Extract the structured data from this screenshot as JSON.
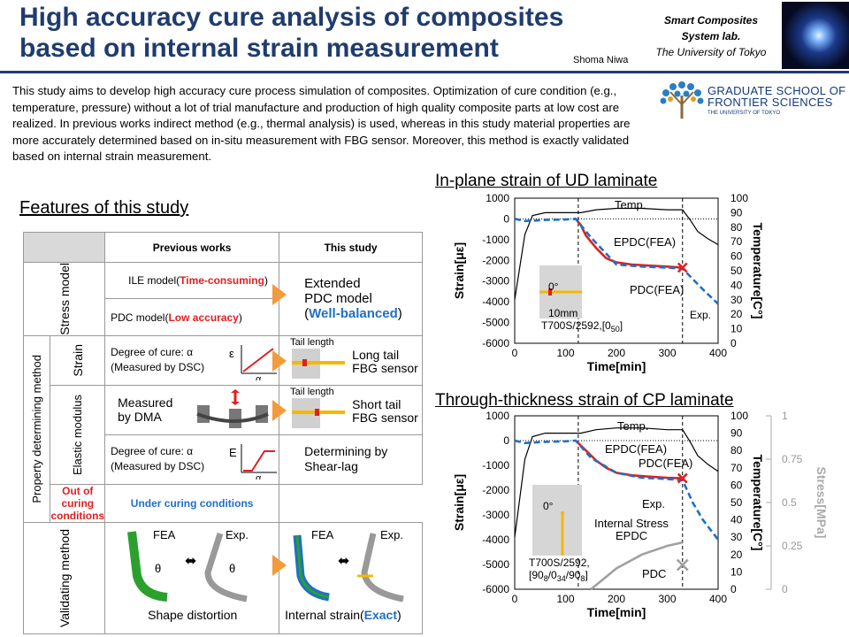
{
  "header": {
    "title": "High accuracy cure analysis of composites based on internal strain measurement",
    "author": "Shoma Niwa",
    "lab_line1": "Smart Composites",
    "lab_line2": "System lab.",
    "lab_line3": "The University of Tokyo",
    "school_line1": "GRADUATE SCHOOL OF",
    "school_line2": "FRONTIER SCIENCES",
    "school_line3": "THE UNIVERSITY OF TOKYO"
  },
  "intro": "This study aims to develop high accuracy cure process simulation of composites. Optimization of cure condition (e.g., temperature, pressure) without a lot of trial manufacture and production of high quality composite parts at low cost are realized. In previous works indirect method (e.g., thermal analysis) is used, whereas in this study material properties are more accurately determined based on in-situ measurement with FBG sensor. Moreover, this method is exactly validated based on internal strain measurement.",
  "features": {
    "heading": "Features of this study",
    "col_previous": "Previous works",
    "col_this": "This study",
    "stress_label": "Stress model",
    "ile": "ILE model(",
    "ile_tag": "Time-consuming",
    "ile_end": ")",
    "pdc": "PDC model(",
    "pdc_tag": "Low accuracy",
    "pdc_end": ")",
    "extended1": "Extended",
    "extended2": "PDC model",
    "extended_tag": "Well-balanced",
    "prop_label": "Property determining method",
    "strain_label": "Strain",
    "elastic_label": "Elastic modulus",
    "doc_strain1": "Degree of cure: α",
    "doc_strain2": "(Measured by DSC)",
    "epsilon": "ε",
    "alpha": "α",
    "tail_length": "Tail length",
    "long_tail1": "Long tail",
    "long_tail2": "FBG sensor",
    "measured1": "Measured",
    "measured2": "by DMA",
    "short_tail1": "Short tail",
    "short_tail2": "FBG sensor",
    "doc_el1": "Degree of cure: α",
    "doc_el2": "(Measured by DSC)",
    "e_label": "E",
    "shear1": "Determining by",
    "shear2": "Shear-lag",
    "out_cond": "Out of curing conditions",
    "under_cond": "Under curing conditions",
    "valid_label": "Validating method",
    "fea": "FEA",
    "exp": "Exp.",
    "theta": "θ",
    "shape": "Shape distortion",
    "internal": "Internal strain(",
    "internal_tag": "Exact",
    "internal_end": ")"
  },
  "chart_data": [
    {
      "type": "line",
      "title": "In-plane strain of UD laminate",
      "xlabel": "Time[min]",
      "ylabel": "Strain[με]",
      "y2label": "Temperature[C°]",
      "xlim": [
        0,
        400
      ],
      "ylim": [
        -6000,
        1000
      ],
      "y2lim": [
        0,
        100
      ],
      "xticks": [
        "0",
        "100",
        "200",
        "300",
        "400"
      ],
      "yticks": [
        "1000",
        "0",
        "-1000",
        "-2000",
        "-3000",
        "-4000",
        "-5000",
        "-6000"
      ],
      "y2ticks": [
        "100",
        "90",
        "80",
        "70",
        "60",
        "50",
        "40",
        "30",
        "20",
        "10",
        "0"
      ],
      "annotations": {
        "temp": "Temp.",
        "epdc": "EPDC(FEA)",
        "pdc": "PDC(FEA)",
        "exp": "Exp.",
        "angle": "0°",
        "size": "10mm",
        "spec": "T700S/2592,[0",
        "spec_sub": "50",
        "spec_end": "]"
      },
      "series": [
        {
          "name": "Temp.",
          "color": "#000000",
          "axis": "y2",
          "x": [
            0,
            20,
            35,
            60,
            100,
            130,
            160,
            200,
            250,
            300,
            330,
            345,
            360,
            380,
            400
          ],
          "y": [
            30,
            75,
            88,
            90,
            90,
            90,
            92,
            93,
            93,
            92,
            92,
            85,
            77,
            72,
            68
          ]
        },
        {
          "name": "EPDC(FEA)",
          "color": "#e02020",
          "axis": "y1",
          "x": [
            120,
            130,
            140,
            160,
            180,
            200,
            230,
            260,
            300,
            330
          ],
          "y": [
            0,
            -300,
            -800,
            -1400,
            -1900,
            -2100,
            -2200,
            -2250,
            -2300,
            -2350
          ]
        },
        {
          "name": "Exp.",
          "color": "#1f6fc6",
          "dashed": true,
          "axis": "y1",
          "x": [
            0,
            20,
            60,
            100,
            120,
            150,
            200,
            250,
            300,
            330,
            350,
            370,
            400
          ],
          "y": [
            0,
            -100,
            -50,
            -30,
            0,
            -900,
            -2200,
            -2300,
            -2350,
            -2400,
            -2900,
            -3400,
            -4100
          ]
        }
      ],
      "marker": {
        "name": "PDC(FEA)",
        "x": 330,
        "y": -2350,
        "color": "#e02020"
      },
      "vlines": [
        125,
        330
      ],
      "hline": 0
    },
    {
      "type": "line",
      "title": "Through-thickness strain of CP laminate",
      "xlabel": "Time[min]",
      "ylabel": "Strain[με]",
      "y2label": "Temperature[C°]",
      "y3label": "Stress[MPa]",
      "xlim": [
        0,
        400
      ],
      "ylim": [
        -6000,
        1000
      ],
      "y2lim": [
        0,
        100
      ],
      "y3lim": [
        0,
        1
      ],
      "xticks": [
        "0",
        "100",
        "200",
        "300",
        "400"
      ],
      "yticks": [
        "1000",
        "0",
        "-1000",
        "-2000",
        "-3000",
        "-4000",
        "-5000",
        "-6000"
      ],
      "y2ticks": [
        "100",
        "90",
        "80",
        "70",
        "60",
        "50",
        "40",
        "30",
        "20",
        "10",
        "0"
      ],
      "y3ticks": [
        "1",
        "0.75",
        "0.5",
        "0.25",
        "0"
      ],
      "annotations": {
        "temp": "Temp.",
        "epdc": "EPDC(FEA)",
        "pdc": "PDC(FEA)",
        "exp": "Exp.",
        "internal": "Internal Stress",
        "internal_epdc": "EPDC",
        "pdc_stress": "PDC",
        "angle": "0°",
        "spec1": "T700S/2592,",
        "spec2a": "[90",
        "spec2b": "8",
        "spec2c": "/0",
        "spec2d": "34",
        "spec2e": "/90",
        "spec2f": "8",
        "spec2g": "]"
      },
      "series": [
        {
          "name": "Temp.",
          "color": "#000000",
          "axis": "y2",
          "x": [
            0,
            20,
            35,
            60,
            100,
            130,
            160,
            200,
            250,
            300,
            330,
            345,
            360,
            380,
            400
          ],
          "y": [
            30,
            75,
            88,
            90,
            90,
            90,
            92,
            93,
            93,
            92,
            92,
            85,
            77,
            72,
            68
          ]
        },
        {
          "name": "EPDC(FEA)",
          "color": "#e02020",
          "axis": "y1",
          "x": [
            120,
            140,
            160,
            180,
            200,
            230,
            260,
            300,
            330
          ],
          "y": [
            0,
            -400,
            -800,
            -1100,
            -1300,
            -1400,
            -1450,
            -1500,
            -1520
          ]
        },
        {
          "name": "Exp.",
          "color": "#1f6fc6",
          "dashed": true,
          "axis": "y1",
          "x": [
            0,
            20,
            60,
            100,
            120,
            150,
            200,
            250,
            300,
            330,
            350,
            370,
            400
          ],
          "y": [
            0,
            -100,
            -50,
            -30,
            0,
            -700,
            -1300,
            -1500,
            -1550,
            -1600,
            -2500,
            -3200,
            -4000
          ]
        },
        {
          "name": "Internal Stress EPDC",
          "color": "#a0a0a0",
          "axis": "y3",
          "x": [
            150,
            200,
            250,
            300,
            330
          ],
          "y": [
            0,
            0.12,
            0.2,
            0.25,
            0.27
          ]
        }
      ],
      "marker": {
        "name": "PDC(FEA)",
        "x": 330,
        "y": -1520,
        "color": "#e02020"
      },
      "marker2": {
        "name": "PDC",
        "x": 330,
        "y3": 0.14,
        "color": "#a0a0a0"
      },
      "vlines": [
        125,
        330
      ],
      "hline": 0
    }
  ]
}
